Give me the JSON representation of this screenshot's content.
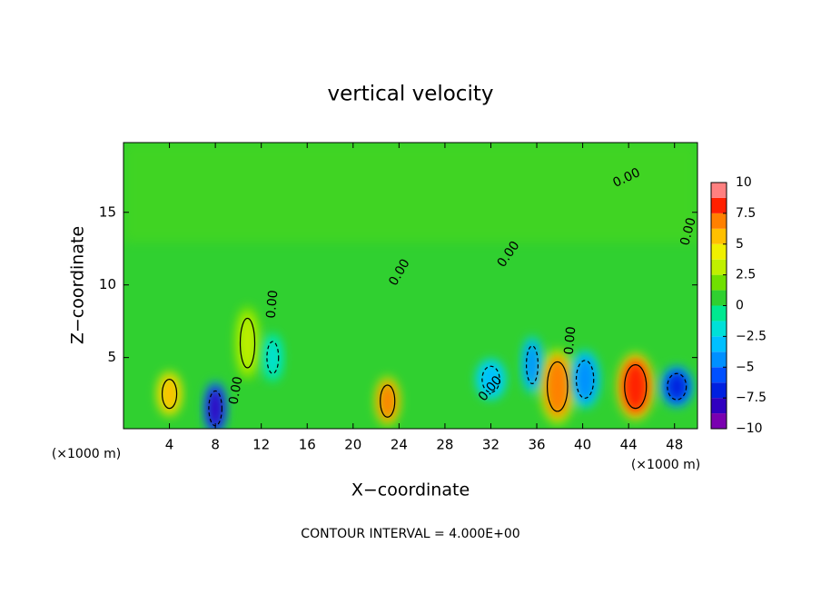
{
  "chart_data": {
    "type": "contour",
    "title": "vertical velocity",
    "x_label": "X−coordinate",
    "y_label": "Z−coordinate",
    "x_unit": "(×1000 m)",
    "footer": "CONTOUR INTERVAL = 4.000E+00",
    "contour_label": "0.00",
    "xlim": [
      0,
      50
    ],
    "xticks": [
      4,
      8,
      12,
      16,
      20,
      24,
      28,
      32,
      36,
      40,
      44,
      48
    ],
    "ylim": [
      0.1,
      19.8
    ],
    "yticks": [
      5,
      10,
      15
    ],
    "cells": {
      "x": [
        4,
        8,
        10.8,
        13,
        23,
        32,
        35.6,
        37.8,
        40.2,
        44.6,
        48.2
      ],
      "y": [
        2.5,
        1.5,
        6,
        5,
        2,
        3.5,
        4.5,
        3,
        3.5,
        3,
        3
      ],
      "values": [
        6,
        -8,
        3.5,
        -2,
        7,
        -2.5,
        -4,
        7.5,
        -4,
        8.5,
        -7
      ]
    },
    "colorbar": {
      "levels": [
        -10,
        -8.75,
        -7.5,
        -6.25,
        -5,
        -3.75,
        -2.5,
        -1.25,
        0,
        1.25,
        2.5,
        3.75,
        5,
        6.25,
        7.5,
        8.75,
        10
      ],
      "colors": [
        "#7a00b0",
        "#3000c0",
        "#0020e0",
        "#0050ff",
        "#0090ff",
        "#00c0ff",
        "#00e0d8",
        "#00e890",
        "#30d030",
        "#70e000",
        "#c0f000",
        "#f0f000",
        "#ffc000",
        "#ff8000",
        "#ff2000",
        "#ff8080"
      ],
      "ticks": [
        {
          "value": -10,
          "label": "−10"
        },
        {
          "value": -7.5,
          "label": "−7.5"
        },
        {
          "value": -5,
          "label": "−5"
        },
        {
          "value": -2.5,
          "label": "−2.5"
        },
        0,
        2.5,
        5,
        7.5,
        10
      ]
    }
  }
}
